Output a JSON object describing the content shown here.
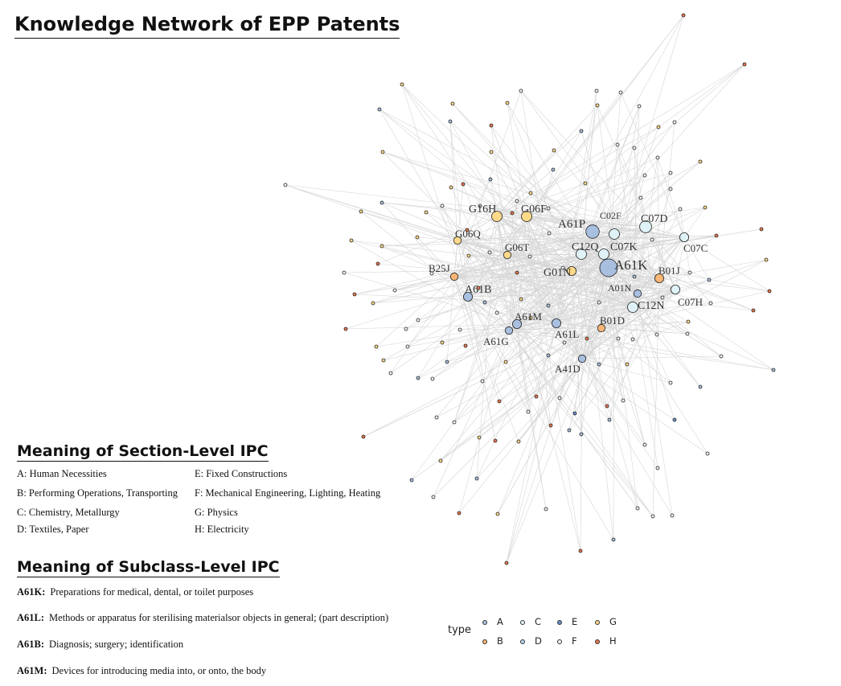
{
  "title": "Knowledge Network of EPP Patents",
  "section_title": "Meaning of Section-Level IPC",
  "section_items": [
    "A: Human Necessities",
    "B: Performing Operations, Transporting",
    "C: Chemistry, Metallurgy",
    "D: Textiles, Paper",
    "E: Fixed Constructions",
    "F: Mechanical Engineering, Lighting, Heating",
    "G: Physics",
    "H: Electricity"
  ],
  "subclass_title": "Meaning of Subclass-Level IPC",
  "subclass_items": [
    {
      "code": "A61K:",
      "text": "Preparations for medical, dental, or toilet purposes"
    },
    {
      "code": "A61L:",
      "text": "Methods or apparatus for sterilising materialsor objects in general; (part description)"
    },
    {
      "code": "A61B:",
      "text": "Diagnosis; surgery; identification"
    },
    {
      "code": "A61M:",
      "text": "Devices for introducing media into, or onto, the body"
    }
  ],
  "legend": {
    "title": "type",
    "items": [
      {
        "label": "A",
        "color": "#a9bfe0"
      },
      {
        "label": "B",
        "color": "#f7b676"
      },
      {
        "label": "C",
        "color": "#dff2f7"
      },
      {
        "label": "D",
        "color": "#b8d4ec"
      },
      {
        "label": "E",
        "color": "#6b8fc9"
      },
      {
        "label": "F",
        "color": "#eef7f7"
      },
      {
        "label": "G",
        "color": "#fdd98a"
      },
      {
        "label": "H",
        "color": "#e8774f"
      }
    ]
  },
  "network": {
    "labeled_nodes": [
      {
        "label": "A61K",
        "type": "A",
        "weight": 10
      },
      {
        "label": "A61P",
        "type": "A",
        "weight": 7
      },
      {
        "label": "C07D",
        "type": "C",
        "weight": 6
      },
      {
        "label": "C02F",
        "type": "C",
        "weight": 5
      },
      {
        "label": "C12Q",
        "type": "C",
        "weight": 5
      },
      {
        "label": "C07K",
        "type": "C",
        "weight": 5
      },
      {
        "label": "C07C",
        "type": "C",
        "weight": 4
      },
      {
        "label": "C12N",
        "type": "C",
        "weight": 5
      },
      {
        "label": "C07H",
        "type": "C",
        "weight": 4
      },
      {
        "label": "B01J",
        "type": "B",
        "weight": 4
      },
      {
        "label": "A01N",
        "type": "A",
        "weight": 3
      },
      {
        "label": "G16H",
        "type": "G",
        "weight": 5
      },
      {
        "label": "G06F",
        "type": "G",
        "weight": 5
      },
      {
        "label": "G06Q",
        "type": "G",
        "weight": 3
      },
      {
        "label": "G06T",
        "type": "G",
        "weight": 3
      },
      {
        "label": "G01N",
        "type": "G",
        "weight": 4
      },
      {
        "label": "B25J",
        "type": "B",
        "weight": 3
      },
      {
        "label": "A61B",
        "type": "A",
        "weight": 4
      },
      {
        "label": "A61M",
        "type": "A",
        "weight": 4
      },
      {
        "label": "A61G",
        "type": "A",
        "weight": 3
      },
      {
        "label": "A61L",
        "type": "A",
        "weight": 4
      },
      {
        "label": "B01D",
        "type": "B",
        "weight": 3
      },
      {
        "label": "A41D",
        "type": "A",
        "weight": 3
      }
    ]
  }
}
